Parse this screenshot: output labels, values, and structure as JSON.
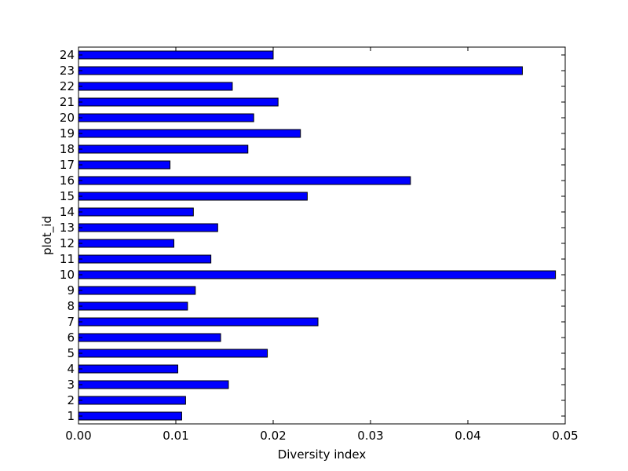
{
  "chart_data": {
    "type": "bar",
    "orientation": "horizontal",
    "title": "",
    "xlabel": "Diversity index",
    "ylabel": "plot_id",
    "xlim": [
      0,
      0.05
    ],
    "xticks": [
      "0.00",
      "0.01",
      "0.02",
      "0.03",
      "0.04",
      "0.05"
    ],
    "categories": [
      "1",
      "2",
      "3",
      "4",
      "5",
      "6",
      "7",
      "8",
      "9",
      "10",
      "11",
      "12",
      "13",
      "14",
      "15",
      "16",
      "17",
      "18",
      "19",
      "20",
      "21",
      "22",
      "23",
      "24"
    ],
    "values": [
      0.0106,
      0.011,
      0.0154,
      0.0102,
      0.0194,
      0.0146,
      0.0246,
      0.0112,
      0.012,
      0.049,
      0.0136,
      0.0098,
      0.0143,
      0.0118,
      0.0235,
      0.0341,
      0.0094,
      0.0174,
      0.0228,
      0.018,
      0.0205,
      0.0158,
      0.0456,
      0.02
    ],
    "bar_color": "#0000ff",
    "edge_color": "#000000",
    "grid": false,
    "legend": "none"
  }
}
